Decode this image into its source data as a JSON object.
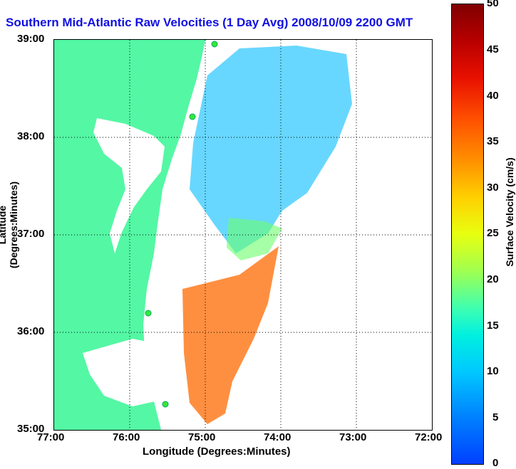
{
  "title": "Southern Mid-Atlantic Raw Velocities (1 Day Avg) 2008/10/09 2200 GMT",
  "x_axis": {
    "label": "Longitude (Degrees:Minutes)",
    "ticks": [
      "77:00",
      "76:00",
      "75:00",
      "74:00",
      "73:00",
      "72:00"
    ]
  },
  "y_axis": {
    "label": "Latitude (Degrees:Minutes)",
    "ticks": [
      "39:00",
      "38:00",
      "37:00",
      "36:00",
      "35:00"
    ]
  },
  "colorbar": {
    "label": "Surface Velocity (cm/s)",
    "ticks": [
      "50",
      "45",
      "40",
      "35",
      "30",
      "25",
      "20",
      "15",
      "10",
      "5",
      "0"
    ]
  },
  "colors": {
    "land": "#54f7a4",
    "title": "#1010e0",
    "stations": "#36e836"
  }
}
